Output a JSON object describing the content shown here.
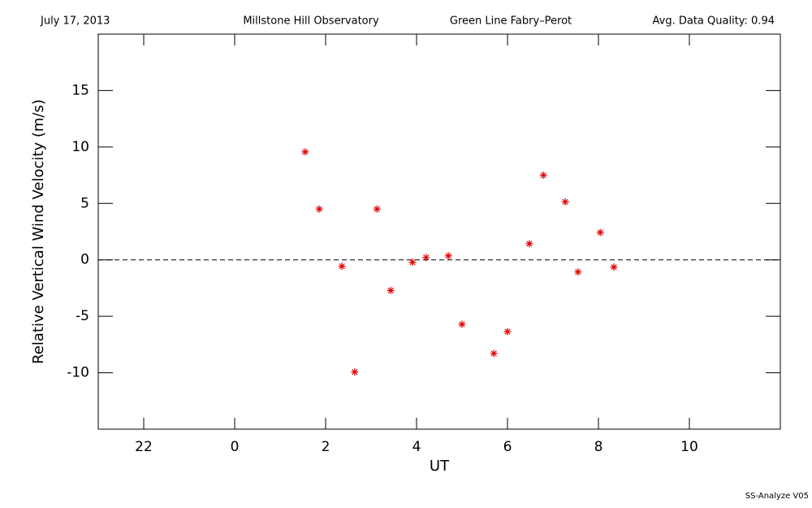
{
  "chart_data": {
    "type": "scatter",
    "header": [
      "July 17, 2013",
      "Millstone Hill Observatory",
      "Green Line Fabry–Perot",
      "Avg. Data Quality: 0.94"
    ],
    "footer": "SS-Analyze V05",
    "xlabel": "UT",
    "ylabel": "Relative Vertical Wind Velocity (m/s)",
    "xlim": [
      -3,
      12
    ],
    "ylim": [
      -15,
      20
    ],
    "xticks": [
      {
        "value": -2,
        "label": "22"
      },
      0,
      2,
      4,
      6,
      8,
      10
    ],
    "yticks": [
      -10,
      -5,
      0,
      5,
      10,
      15
    ],
    "hline": 0,
    "color": "#e00000",
    "x": [
      1.55,
      1.86,
      2.36,
      2.64,
      3.13,
      3.43,
      3.91,
      4.21,
      4.7,
      5.0,
      5.7,
      6.0,
      6.48,
      6.79,
      7.27,
      7.55,
      8.04,
      8.34
    ],
    "values": [
      9.57,
      4.5,
      -0.57,
      -9.93,
      4.5,
      -2.71,
      -0.21,
      0.21,
      0.36,
      -5.71,
      -8.29,
      -6.36,
      1.43,
      7.5,
      5.14,
      -1.07,
      2.43,
      -0.64
    ]
  }
}
